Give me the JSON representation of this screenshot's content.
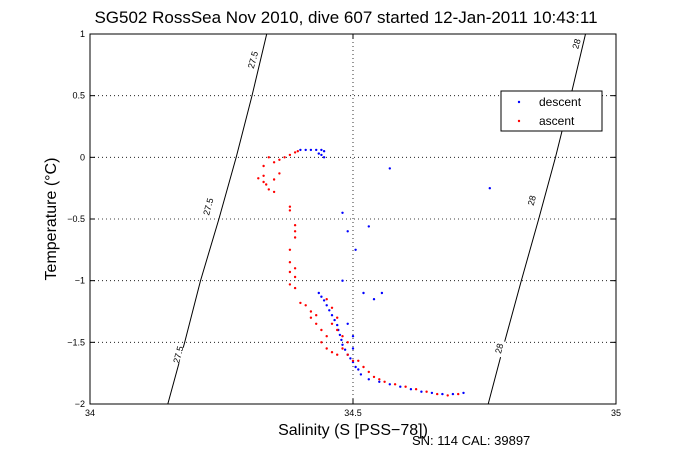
{
  "chart_data": {
    "type": "scatter",
    "title": "SG502 RossSea Nov 2010, dive 607 started 12-Jan-2011 10:43:11",
    "xlabel": "Salinity (S [PSS−78])",
    "ylabel": "Temperature (°C)",
    "xlim": [
      34,
      35
    ],
    "ylim": [
      -2,
      1
    ],
    "xticks": [
      34,
      34.5,
      35
    ],
    "xtick_labels": [
      "34",
      "34.5",
      "35"
    ],
    "yticks": [
      -2,
      -1.5,
      -1,
      -0.5,
      0,
      0.5,
      1
    ],
    "ytick_labels": [
      "−2",
      "−1.5",
      "−1",
      "−0.5",
      "0",
      "0.5",
      "1"
    ],
    "grid": true,
    "legend_position": "upper-right",
    "footer": "SN: 114  CAL: 39897",
    "contours": [
      {
        "value": "27.5",
        "points": [
          [
            34.148,
            -2.0
          ],
          [
            34.18,
            -1.5
          ],
          [
            34.21,
            -1.0
          ],
          [
            34.245,
            -0.5
          ],
          [
            34.278,
            0.0
          ],
          [
            34.308,
            0.5
          ],
          [
            34.336,
            1.0
          ]
        ],
        "label_at": [
          [
            34.168,
            -1.6
          ],
          [
            34.225,
            -0.4
          ],
          [
            34.31,
            0.79
          ]
        ]
      },
      {
        "value": "28",
        "points": [
          [
            34.757,
            -2.0
          ],
          [
            34.788,
            -1.5
          ],
          [
            34.82,
            -1.0
          ],
          [
            34.853,
            -0.5
          ],
          [
            34.885,
            0.0
          ],
          [
            34.914,
            0.5
          ],
          [
            34.942,
            1.0
          ]
        ],
        "label_at": [
          [
            34.778,
            -1.55
          ],
          [
            34.84,
            -0.35
          ],
          [
            34.925,
            0.92
          ]
        ]
      }
    ],
    "series": [
      {
        "name": "descent",
        "color": "#0000ff",
        "points": [
          [
            34.4,
            0.06
          ],
          [
            34.41,
            0.06
          ],
          [
            34.42,
            0.06
          ],
          [
            34.43,
            0.06
          ],
          [
            34.44,
            0.06
          ],
          [
            34.445,
            0.05
          ],
          [
            34.435,
            0.03
          ],
          [
            34.44,
            0.02
          ],
          [
            34.445,
            0.0
          ],
          [
            34.57,
            -0.09
          ],
          [
            34.76,
            -0.25
          ],
          [
            34.48,
            -0.45
          ],
          [
            34.49,
            -0.6
          ],
          [
            34.53,
            -0.56
          ],
          [
            34.505,
            -0.75
          ],
          [
            34.48,
            -1.0
          ],
          [
            34.52,
            -1.1
          ],
          [
            34.54,
            -1.15
          ],
          [
            34.555,
            -1.1
          ],
          [
            34.435,
            -1.1
          ],
          [
            34.44,
            -1.13
          ],
          [
            34.445,
            -1.16
          ],
          [
            34.45,
            -1.2
          ],
          [
            34.455,
            -1.24
          ],
          [
            34.46,
            -1.28
          ],
          [
            34.465,
            -1.32
          ],
          [
            34.47,
            -1.36
          ],
          [
            34.472,
            -1.4
          ],
          [
            34.475,
            -1.44
          ],
          [
            34.478,
            -1.48
          ],
          [
            34.48,
            -1.52
          ],
          [
            34.485,
            -1.56
          ],
          [
            34.49,
            -1.6
          ],
          [
            34.495,
            -1.63
          ],
          [
            34.5,
            -1.66
          ],
          [
            34.505,
            -1.7
          ],
          [
            34.51,
            -1.72
          ],
          [
            34.515,
            -1.76
          ],
          [
            34.53,
            -1.8
          ],
          [
            34.55,
            -1.82
          ],
          [
            34.57,
            -1.84
          ],
          [
            34.59,
            -1.86
          ],
          [
            34.61,
            -1.88
          ],
          [
            34.63,
            -1.9
          ],
          [
            34.65,
            -1.91
          ],
          [
            34.67,
            -1.92
          ],
          [
            34.69,
            -1.92
          ],
          [
            34.71,
            -1.91
          ],
          [
            34.49,
            -1.35
          ],
          [
            34.5,
            -1.45
          ],
          [
            34.5,
            -1.55
          ]
        ]
      },
      {
        "name": "ascent",
        "color": "#ff0000",
        "points": [
          [
            34.38,
            0.02
          ],
          [
            34.39,
            0.04
          ],
          [
            34.395,
            0.05
          ],
          [
            34.37,
            0.0
          ],
          [
            34.36,
            -0.02
          ],
          [
            34.35,
            -0.04
          ],
          [
            34.34,
            0.0
          ],
          [
            34.33,
            -0.07
          ],
          [
            34.36,
            -0.13
          ],
          [
            34.35,
            -0.18
          ],
          [
            34.33,
            -0.15
          ],
          [
            34.33,
            -0.2
          ],
          [
            34.335,
            -0.22
          ],
          [
            34.32,
            -0.17
          ],
          [
            34.34,
            -0.26
          ],
          [
            34.35,
            -0.28
          ],
          [
            34.38,
            -0.4
          ],
          [
            34.38,
            -0.43
          ],
          [
            34.39,
            -0.55
          ],
          [
            34.39,
            -0.6
          ],
          [
            34.39,
            -0.65
          ],
          [
            34.38,
            -0.75
          ],
          [
            34.38,
            -0.85
          ],
          [
            34.39,
            -0.9
          ],
          [
            34.38,
            -0.93
          ],
          [
            34.39,
            -0.97
          ],
          [
            34.38,
            -1.03
          ],
          [
            34.39,
            -1.06
          ],
          [
            34.4,
            -1.18
          ],
          [
            34.41,
            -1.2
          ],
          [
            34.42,
            -1.25
          ],
          [
            34.43,
            -1.28
          ],
          [
            34.42,
            -1.3
          ],
          [
            34.43,
            -1.35
          ],
          [
            34.44,
            -1.4
          ],
          [
            34.45,
            -1.45
          ],
          [
            34.44,
            -1.5
          ],
          [
            34.45,
            -1.55
          ],
          [
            34.46,
            -1.58
          ],
          [
            34.47,
            -1.6
          ],
          [
            34.45,
            -1.15
          ],
          [
            34.46,
            -1.22
          ],
          [
            34.47,
            -1.3
          ],
          [
            34.46,
            -1.35
          ],
          [
            34.47,
            -1.4
          ],
          [
            34.48,
            -1.45
          ],
          [
            34.49,
            -1.5
          ],
          [
            34.48,
            -1.55
          ],
          [
            34.49,
            -1.6
          ],
          [
            34.5,
            -1.65
          ],
          [
            34.51,
            -1.65
          ],
          [
            34.52,
            -1.7
          ],
          [
            34.53,
            -1.74
          ],
          [
            34.54,
            -1.78
          ],
          [
            34.55,
            -1.8
          ],
          [
            34.56,
            -1.82
          ],
          [
            34.58,
            -1.84
          ],
          [
            34.6,
            -1.86
          ],
          [
            34.62,
            -1.88
          ],
          [
            34.64,
            -1.9
          ],
          [
            34.66,
            -1.92
          ],
          [
            34.68,
            -1.93
          ],
          [
            34.7,
            -1.92
          ]
        ]
      }
    ]
  }
}
